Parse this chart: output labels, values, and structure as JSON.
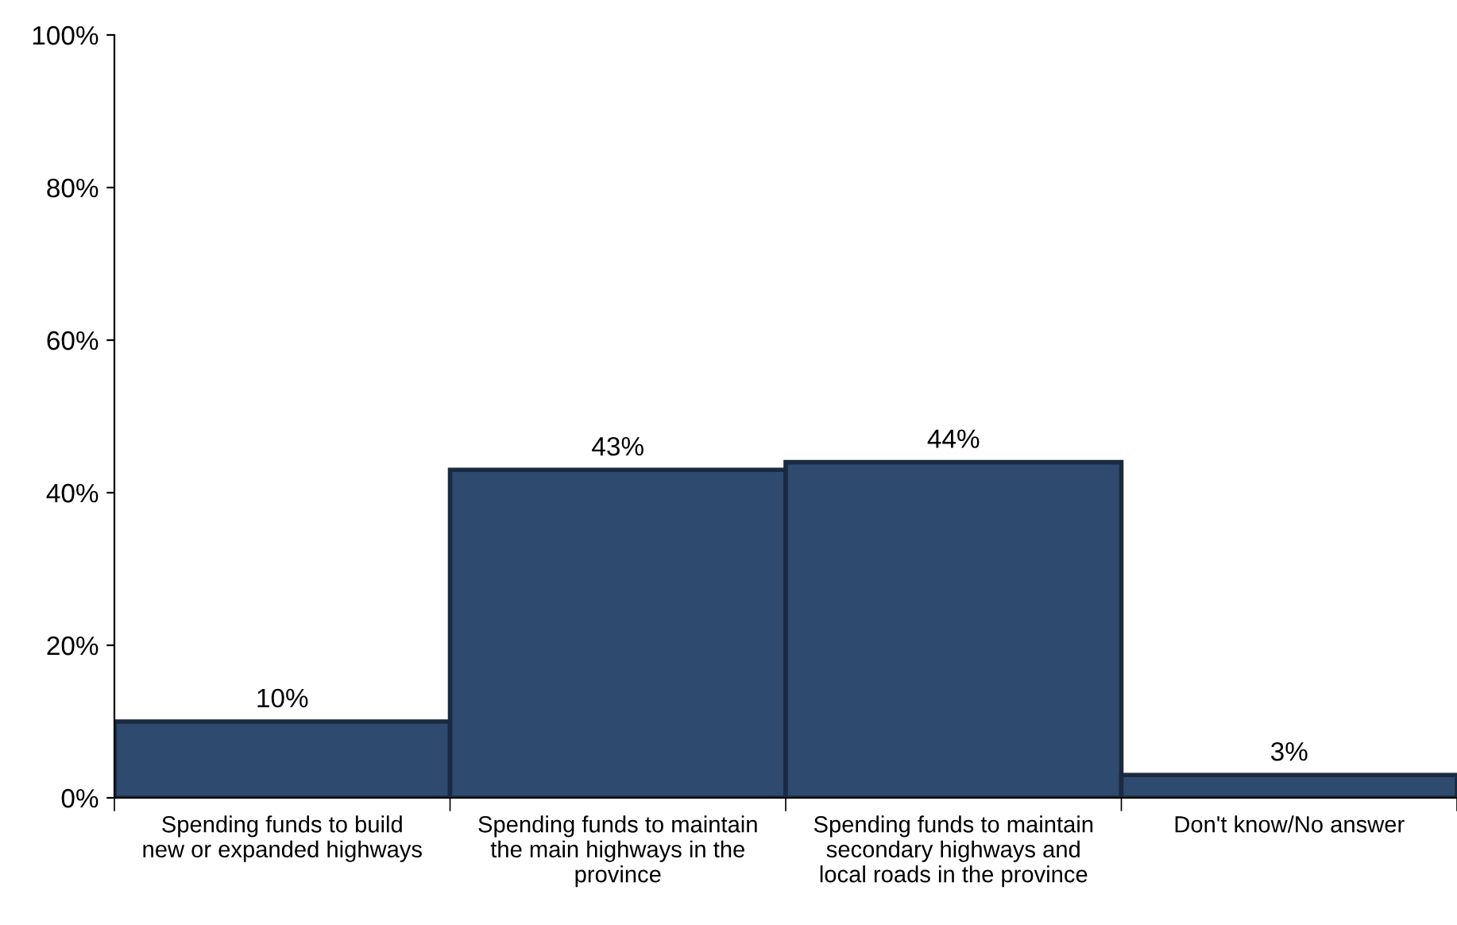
{
  "chart_data": {
    "type": "bar",
    "categories": [
      "Spending funds to build\nnew or expanded highways",
      "Spending funds to maintain\nthe main highways in the\nprovince",
      "Spending funds to maintain\nsecondary highways and\nlocal roads in the province",
      "Don't know/No answer"
    ],
    "values": [
      10,
      43,
      44,
      3
    ],
    "value_labels": [
      "10%",
      "43%",
      "44%",
      "3%"
    ],
    "color": "#2f4a6f",
    "ylim": [
      0,
      100
    ],
    "yticks": [
      {
        "value": 0,
        "label": "0%"
      },
      {
        "value": 20,
        "label": "20%"
      },
      {
        "value": 40,
        "label": "40%"
      },
      {
        "value": 60,
        "label": "60%"
      },
      {
        "value": 80,
        "label": "80%"
      },
      {
        "value": 100,
        "label": "100%"
      }
    ],
    "grid": false,
    "legend": false
  }
}
